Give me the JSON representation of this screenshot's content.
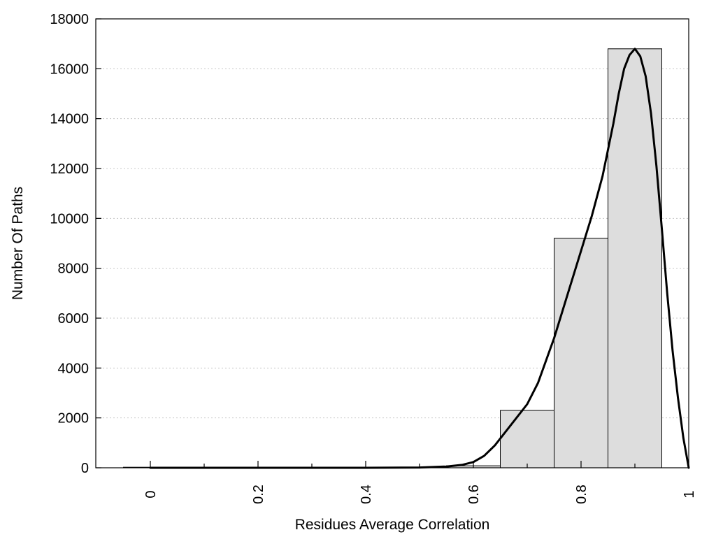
{
  "chart_data": {
    "type": "bar",
    "xlabel": "Residues Average Correlation",
    "ylabel": "Number Of Paths",
    "xlim": [
      -0.1,
      1.0
    ],
    "ylim": [
      0,
      18000
    ],
    "grid": true,
    "x_ticks": [
      0,
      0.2,
      0.4,
      0.6,
      0.8,
      1
    ],
    "x_tick_labels": [
      "0",
      "0.2",
      "0.4",
      "0.6",
      "0.8",
      "1"
    ],
    "y_ticks": [
      0,
      2000,
      4000,
      6000,
      8000,
      10000,
      12000,
      14000,
      16000,
      18000
    ],
    "y_tick_labels": [
      "0",
      "2000",
      "4000",
      "6000",
      "8000",
      "10000",
      "12000",
      "14000",
      "16000",
      "18000"
    ],
    "bins": [
      {
        "start": -0.05,
        "end": 0.05,
        "value": 0
      },
      {
        "start": 0.05,
        "end": 0.15,
        "value": 0
      },
      {
        "start": 0.15,
        "end": 0.25,
        "value": 0
      },
      {
        "start": 0.25,
        "end": 0.35,
        "value": 0
      },
      {
        "start": 0.35,
        "end": 0.45,
        "value": 0
      },
      {
        "start": 0.45,
        "end": 0.55,
        "value": 0
      },
      {
        "start": 0.55,
        "end": 0.65,
        "value": 80
      },
      {
        "start": 0.65,
        "end": 0.75,
        "value": 2300
      },
      {
        "start": 0.75,
        "end": 0.85,
        "value": 9200
      },
      {
        "start": 0.85,
        "end": 0.95,
        "value": 16800
      }
    ],
    "fit_curve": {
      "x": [
        0,
        0.1,
        0.2,
        0.3,
        0.4,
        0.5,
        0.55,
        0.58,
        0.6,
        0.62,
        0.64,
        0.66,
        0.68,
        0.7,
        0.72,
        0.75,
        0.78,
        0.8,
        0.82,
        0.84,
        0.86,
        0.87,
        0.88,
        0.89,
        0.9,
        0.91,
        0.92,
        0.93,
        0.94,
        0.95,
        0.96,
        0.97,
        0.98,
        0.99,
        1.0
      ],
      "y": [
        0,
        0,
        0,
        0,
        0,
        10,
        50,
        120,
        230,
        480,
        900,
        1450,
        2000,
        2550,
        3400,
        5200,
        7300,
        8700,
        10100,
        11700,
        13800,
        15000,
        16000,
        16550,
        16800,
        16500,
        15700,
        14200,
        12100,
        9600,
        7000,
        4700,
        2800,
        1200,
        0
      ]
    },
    "colors": {
      "bar_fill": "#dddddd",
      "bar_stroke": "#000000",
      "curve": "#000000",
      "grid": "#c8c8c8"
    }
  }
}
